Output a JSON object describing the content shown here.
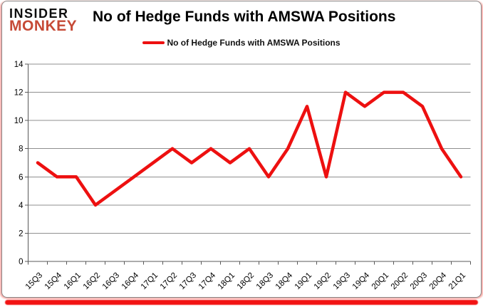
{
  "logo": {
    "line1": "INSIDER",
    "line2": "MONKEY"
  },
  "header": {
    "title": "No of Hedge Funds with AMSWA Positions"
  },
  "legend": {
    "label": "No of Hedge Funds with AMSWA Positions"
  },
  "colors": {
    "series_line": "#ed1010",
    "logo_red": "#c64a36",
    "gridline": "#8f8f8f",
    "axis": "#595959",
    "text": "#000000",
    "bottom_bar": "#f21313",
    "card_border": "#8a8a8a"
  },
  "chart_data": {
    "type": "line",
    "title": "No of Hedge Funds with AMSWA Positions",
    "legend_position": "top",
    "grid": true,
    "xlabel": "",
    "ylabel": "",
    "ylim": [
      0,
      14
    ],
    "ytick_step": 2,
    "categories": [
      "15Q3",
      "15Q4",
      "16Q1",
      "16Q2",
      "16Q3",
      "16Q4",
      "17Q1",
      "17Q2",
      "17Q3",
      "17Q4",
      "18Q1",
      "18Q2",
      "18Q3",
      "18Q4",
      "19Q1",
      "19Q2",
      "19Q3",
      "19Q4",
      "20Q1",
      "20Q2",
      "20Q3",
      "20Q4",
      "21Q1"
    ],
    "series": [
      {
        "name": "No of Hedge Funds with AMSWA Positions",
        "values": [
          7,
          6,
          6,
          4,
          5,
          6,
          7,
          8,
          7,
          8,
          7,
          8,
          6,
          8,
          11,
          6,
          12,
          11,
          12,
          12,
          11,
          8,
          6
        ]
      }
    ]
  }
}
